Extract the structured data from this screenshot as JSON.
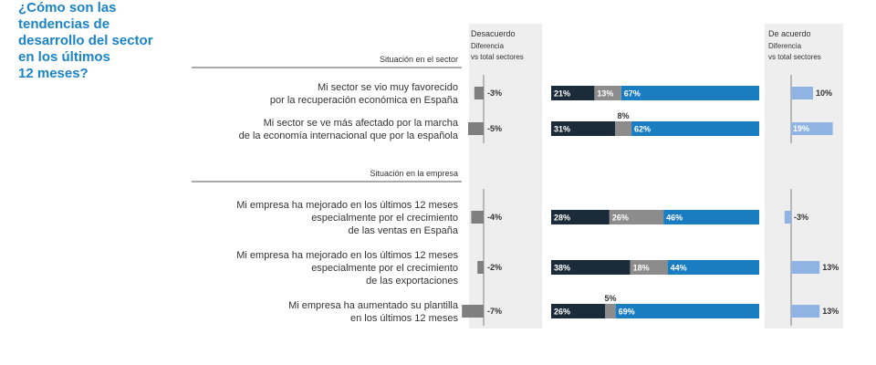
{
  "title": "¿Cómo son las\ntendencias de\ndesarrollo del sector\nen los últimos\n12 meses?",
  "colors": {
    "desacuerdo": "#1c2b39",
    "neutral": "#8c8c8c",
    "acuerdo": "#1a7cc1",
    "diff_disagree": "#7f7f7f",
    "diff_agree": "#8fb4e3",
    "panel": "#eeeeee",
    "title": "#1a84c7"
  },
  "chart_data": {
    "type": "bar",
    "stacked": true,
    "headers": {
      "left_title": "Desacuerdo",
      "left_sub": [
        "Diferencia",
        "vs total sectores"
      ],
      "right_title": "De acuerdo",
      "right_sub": [
        "Diferencia",
        "vs total sectores"
      ]
    },
    "sections": [
      {
        "label": "Situación en el sector",
        "rows": [
          {
            "lines": [
              "Mi sector se vio muy favorecido",
              "por la recuperación económica en España"
            ],
            "desacuerdo": 21,
            "neutral": 13,
            "acuerdo": 67,
            "labels": [
              "21%",
              "13%",
              "67%"
            ],
            "diff_desacuerdo": -3,
            "diff_desacuerdo_label": "-3%",
            "diff_acuerdo": 10,
            "diff_acuerdo_label": "10%"
          },
          {
            "lines": [
              "Mi sector se ve más afectado por la marcha",
              "de la economía internacional que por la española"
            ],
            "desacuerdo": 31,
            "neutral": 8,
            "acuerdo": 62,
            "labels": [
              "31%",
              "8%",
              "62%"
            ],
            "diff_desacuerdo": -5,
            "diff_desacuerdo_label": "-5%",
            "diff_acuerdo": 19,
            "diff_acuerdo_label": "19%"
          }
        ]
      },
      {
        "label": "Situación en la empresa",
        "rows": [
          {
            "lines": [
              "Mi empresa ha mejorado en los últimos 12 meses",
              "especialmente por el crecimiento",
              "de las ventas en España"
            ],
            "desacuerdo": 28,
            "neutral": 26,
            "acuerdo": 46,
            "labels": [
              "28%",
              "26%",
              "46%"
            ],
            "diff_desacuerdo": -4,
            "diff_desacuerdo_label": "-4%",
            "diff_acuerdo": -3,
            "diff_acuerdo_label": "-3%"
          },
          {
            "lines": [
              "Mi empresa ha mejorado en los últimos 12 meses",
              "especialmente por el crecimiento",
              "de las exportaciones"
            ],
            "desacuerdo": 38,
            "neutral": 18,
            "acuerdo": 44,
            "labels": [
              "38%",
              "18%",
              "44%"
            ],
            "diff_desacuerdo": -2,
            "diff_desacuerdo_label": "-2%",
            "diff_acuerdo": 13,
            "diff_acuerdo_label": "13%"
          },
          {
            "lines": [
              "Mi empresa ha aumentado su plantilla",
              "en los últimos 12 meses"
            ],
            "desacuerdo": 26,
            "neutral": 5,
            "acuerdo": 69,
            "labels": [
              "26%",
              "5%",
              "69%"
            ],
            "diff_desacuerdo": -7,
            "diff_desacuerdo_label": "-7%",
            "diff_acuerdo": 13,
            "diff_acuerdo_label": "13%"
          }
        ]
      }
    ]
  }
}
